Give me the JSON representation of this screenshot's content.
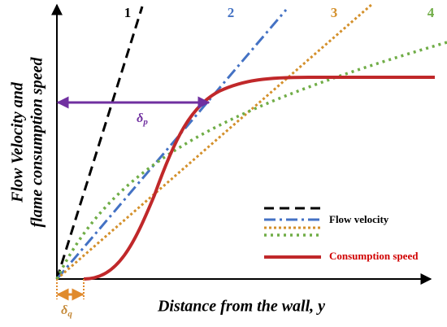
{
  "curve_labels": [
    "1",
    "2",
    "3",
    "4"
  ],
  "delta_p": {
    "symbol": "δ",
    "subscript": "p"
  },
  "delta_q": {
    "symbol": "δ",
    "subscript": "q"
  },
  "legend": {
    "flow": "Flow velocity",
    "consumption": "Consumption speed"
  },
  "y_axis_label": [
    "Flow Velocity and",
    "flame consumption speed"
  ],
  "x_axis_label": "Distance from the wall, y"
}
